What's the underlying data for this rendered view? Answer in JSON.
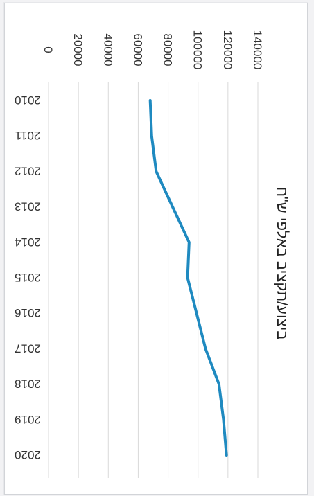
{
  "chart_data": {
    "type": "line",
    "title": "ביצוע/תקציב באלפי ש\"ח",
    "x": [
      "2010",
      "2011",
      "2012",
      "2013",
      "2014",
      "2015",
      "2016",
      "2017",
      "2018",
      "2019",
      "2020"
    ],
    "series": [
      {
        "values": [
          68000,
          69000,
          72000,
          83000,
          94000,
          93000,
          99000,
          105000,
          114000,
          117000,
          119000
        ],
        "color": "#1f8ac0"
      }
    ],
    "ylim": [
      0,
      140000
    ],
    "yticks": [
      0,
      20000,
      40000,
      60000,
      80000,
      100000,
      120000,
      140000
    ],
    "grid": true,
    "legend": "none",
    "xlabel": "",
    "ylabel": ""
  },
  "colors": {
    "line": "#1f8ac0",
    "grid": "#d9d9d9",
    "text": "#333333"
  }
}
